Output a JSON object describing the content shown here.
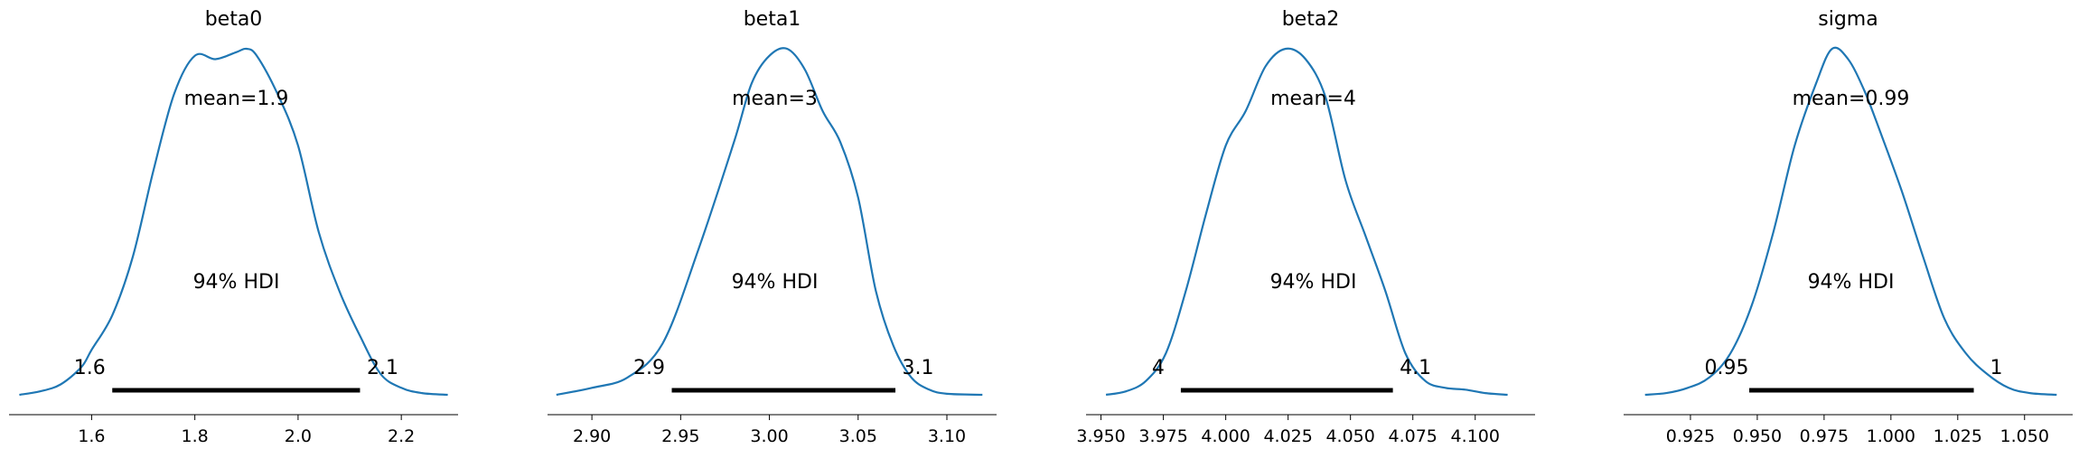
{
  "chart_data": [
    {
      "type": "line",
      "title": "beta0",
      "mean_label": "mean=1.9",
      "hdi_label": "94% HDI",
      "hdi": {
        "low": 1.64,
        "high": 2.12,
        "low_label": "1.6",
        "high_label": "2.1"
      },
      "xlim": [
        1.44,
        2.31
      ],
      "xticks": [
        1.6,
        1.8,
        2.0,
        2.2
      ],
      "xtick_labels": [
        "1.6",
        "1.8",
        "2.0",
        "2.2"
      ],
      "density": {
        "x": [
          1.46,
          1.5,
          1.54,
          1.58,
          1.6,
          1.64,
          1.68,
          1.72,
          1.76,
          1.8,
          1.84,
          1.88,
          1.9,
          1.92,
          1.96,
          2.0,
          2.04,
          2.08,
          2.12,
          2.16,
          2.2,
          2.24,
          2.29
        ],
        "y": [
          0.0,
          0.01,
          0.03,
          0.08,
          0.13,
          0.23,
          0.4,
          0.65,
          0.87,
          0.98,
          0.97,
          0.99,
          1.0,
          0.98,
          0.87,
          0.72,
          0.47,
          0.3,
          0.17,
          0.06,
          0.02,
          0.005,
          0.0
        ]
      }
    },
    {
      "type": "line",
      "title": "beta1",
      "mean_label": "mean=3",
      "hdi_label": "94% HDI",
      "hdi": {
        "low": 2.945,
        "high": 3.071,
        "low_label": "2.9",
        "high_label": "3.1"
      },
      "xlim": [
        2.875,
        3.128
      ],
      "xticks": [
        2.9,
        2.95,
        3.0,
        3.05,
        3.1
      ],
      "xtick_labels": [
        "2.90",
        "2.95",
        "3.00",
        "3.05",
        "3.10"
      ],
      "density": {
        "x": [
          2.88,
          2.9,
          2.92,
          2.94,
          2.96,
          2.98,
          2.99,
          3.0,
          3.01,
          3.02,
          3.03,
          3.04,
          3.05,
          3.06,
          3.07,
          3.08,
          3.09,
          3.1,
          3.12
        ],
        "y": [
          0.0,
          0.02,
          0.05,
          0.15,
          0.42,
          0.73,
          0.9,
          0.98,
          1.0,
          0.94,
          0.82,
          0.73,
          0.57,
          0.3,
          0.14,
          0.05,
          0.015,
          0.003,
          0.0
        ]
      }
    },
    {
      "type": "line",
      "title": "beta2",
      "mean_label": "mean=4",
      "hdi_label": "94% HDI",
      "hdi": {
        "low": 3.982,
        "high": 4.067,
        "low_label": "4",
        "high_label": "4.1"
      },
      "xlim": [
        3.944,
        4.124
      ],
      "xticks": [
        3.95,
        3.975,
        4.0,
        4.025,
        4.05,
        4.075,
        4.1
      ],
      "xtick_labels": [
        "3.950",
        "3.975",
        "4.000",
        "4.025",
        "4.050",
        "4.075",
        "4.100"
      ],
      "density": {
        "x": [
          3.952,
          3.96,
          3.968,
          3.976,
          3.984,
          3.992,
          4.0,
          4.008,
          4.016,
          4.024,
          4.032,
          4.04,
          4.048,
          4.056,
          4.064,
          4.072,
          4.08,
          4.088,
          4.096,
          4.104,
          4.113
        ],
        "y": [
          0.0,
          0.01,
          0.04,
          0.12,
          0.3,
          0.52,
          0.72,
          0.82,
          0.95,
          1.0,
          0.97,
          0.86,
          0.62,
          0.46,
          0.3,
          0.12,
          0.04,
          0.02,
          0.015,
          0.005,
          0.0
        ]
      }
    },
    {
      "type": "line",
      "title": "sigma",
      "mean_label": "mean=0.99",
      "hdi_label": "94% HDI",
      "hdi": {
        "low": 0.947,
        "high": 1.031,
        "low_label": "0.95",
        "high_label": "1"
      },
      "xlim": [
        0.9,
        1.068
      ],
      "xticks": [
        0.925,
        0.95,
        0.975,
        1.0,
        1.025,
        1.05
      ],
      "xtick_labels": [
        "0.925",
        "0.950",
        "0.975",
        "1.000",
        "1.025",
        "1.050"
      ],
      "density": {
        "x": [
          0.908,
          0.916,
          0.924,
          0.932,
          0.94,
          0.948,
          0.956,
          0.964,
          0.972,
          0.978,
          0.984,
          0.99,
          0.996,
          1.004,
          1.012,
          1.02,
          1.028,
          1.036,
          1.044,
          1.052,
          1.062
        ],
        "y": [
          0.0,
          0.005,
          0.02,
          0.05,
          0.12,
          0.26,
          0.47,
          0.72,
          0.9,
          1.0,
          0.97,
          0.88,
          0.76,
          0.59,
          0.4,
          0.22,
          0.12,
          0.06,
          0.02,
          0.005,
          0.0
        ]
      }
    }
  ]
}
